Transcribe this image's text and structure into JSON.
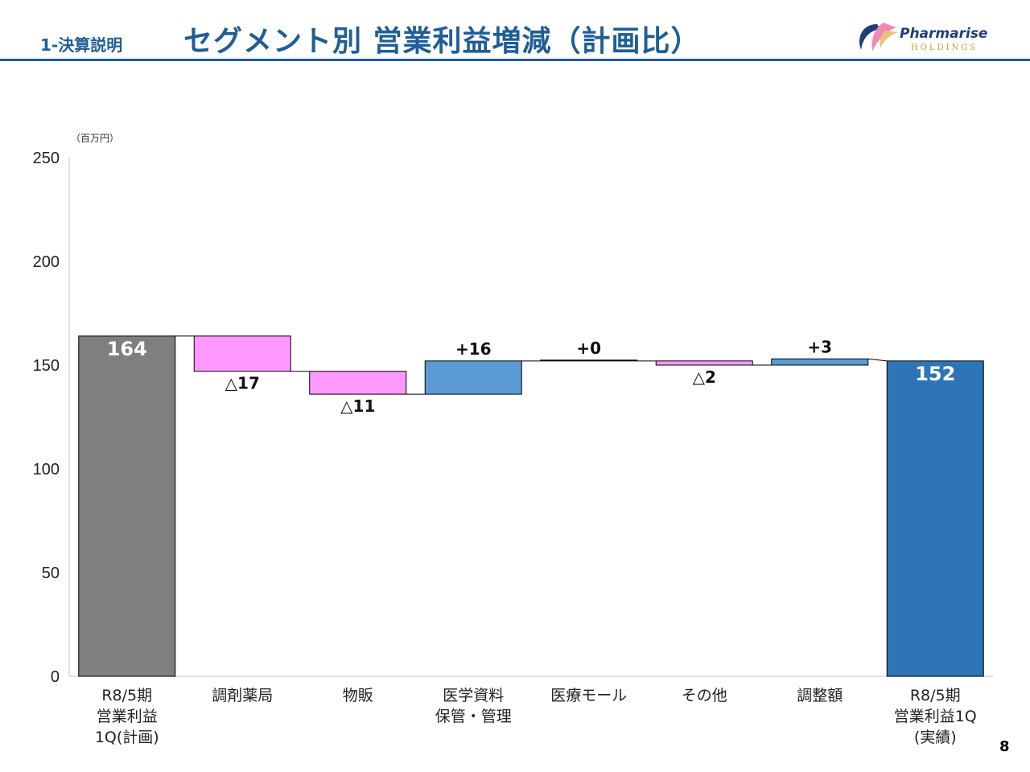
{
  "header": {
    "section_label": "1-決算説明",
    "title": "セグメント別 営業利益増減（計画比）",
    "logo_name": "Pharmarise",
    "logo_sub": "HOLDINGS"
  },
  "unit_label": "（百万円）",
  "page_number": "8",
  "colors": {
    "start_bar": "#7f7f7f",
    "end_bar": "#2e75b6",
    "increase": "#5b9bd5",
    "decrease": "#ff99ff",
    "title": "#1f5e96"
  },
  "chart_data": {
    "type": "waterfall",
    "title": "セグメント別 営業利益増減（計画比）",
    "ylabel": "（百万円）",
    "ylim": [
      0,
      250
    ],
    "yticks": [
      "0",
      "50",
      "100",
      "150",
      "200",
      "250"
    ],
    "categories": [
      "R8/5期\n営業利益\n1Q(計画)",
      "調剤薬局",
      "物販",
      "医学資料\n保管・管理",
      "医療モール",
      "その他",
      "調整額",
      "R8/5期\n営業利益1Q\n(実績)"
    ],
    "values": [
      164,
      -17,
      -11,
      16,
      0,
      -2,
      3,
      152
    ],
    "kinds": [
      "total",
      "delta",
      "delta",
      "delta",
      "delta",
      "delta",
      "delta",
      "total"
    ],
    "labels": [
      "164",
      "△17",
      "△11",
      "+16",
      "+0",
      "△2",
      "+3",
      "152"
    ]
  }
}
